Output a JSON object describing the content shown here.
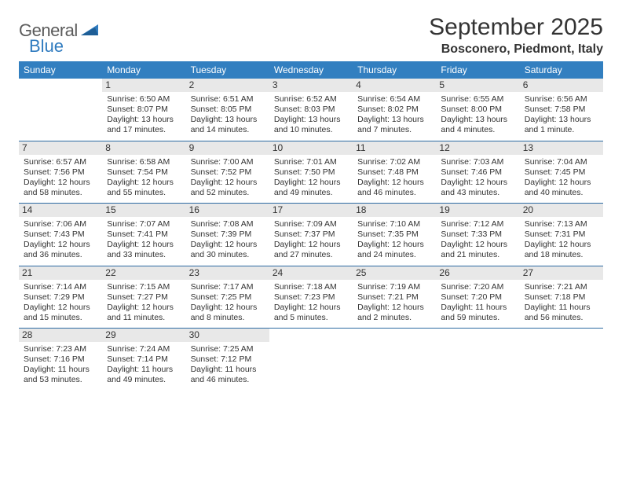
{
  "brand": {
    "general": "General",
    "blue": "Blue"
  },
  "title": "September 2025",
  "location": "Bosconero, Piedmont, Italy",
  "colors": {
    "header_bg": "#327fc0",
    "header_text": "#ffffff",
    "daynum_bg": "#e8e8e8",
    "rule": "#2d6aa2",
    "body_text": "#333333",
    "brand_gray": "#5b5b5b",
    "brand_blue": "#2f7bbf"
  },
  "dayNames": [
    "Sunday",
    "Monday",
    "Tuesday",
    "Wednesday",
    "Thursday",
    "Friday",
    "Saturday"
  ],
  "weeks": [
    [
      {
        "n": "",
        "sr": "",
        "ss": "",
        "dl": ""
      },
      {
        "n": "1",
        "sr": "Sunrise: 6:50 AM",
        "ss": "Sunset: 8:07 PM",
        "dl": "Daylight: 13 hours and 17 minutes."
      },
      {
        "n": "2",
        "sr": "Sunrise: 6:51 AM",
        "ss": "Sunset: 8:05 PM",
        "dl": "Daylight: 13 hours and 14 minutes."
      },
      {
        "n": "3",
        "sr": "Sunrise: 6:52 AM",
        "ss": "Sunset: 8:03 PM",
        "dl": "Daylight: 13 hours and 10 minutes."
      },
      {
        "n": "4",
        "sr": "Sunrise: 6:54 AM",
        "ss": "Sunset: 8:02 PM",
        "dl": "Daylight: 13 hours and 7 minutes."
      },
      {
        "n": "5",
        "sr": "Sunrise: 6:55 AM",
        "ss": "Sunset: 8:00 PM",
        "dl": "Daylight: 13 hours and 4 minutes."
      },
      {
        "n": "6",
        "sr": "Sunrise: 6:56 AM",
        "ss": "Sunset: 7:58 PM",
        "dl": "Daylight: 13 hours and 1 minute."
      }
    ],
    [
      {
        "n": "7",
        "sr": "Sunrise: 6:57 AM",
        "ss": "Sunset: 7:56 PM",
        "dl": "Daylight: 12 hours and 58 minutes."
      },
      {
        "n": "8",
        "sr": "Sunrise: 6:58 AM",
        "ss": "Sunset: 7:54 PM",
        "dl": "Daylight: 12 hours and 55 minutes."
      },
      {
        "n": "9",
        "sr": "Sunrise: 7:00 AM",
        "ss": "Sunset: 7:52 PM",
        "dl": "Daylight: 12 hours and 52 minutes."
      },
      {
        "n": "10",
        "sr": "Sunrise: 7:01 AM",
        "ss": "Sunset: 7:50 PM",
        "dl": "Daylight: 12 hours and 49 minutes."
      },
      {
        "n": "11",
        "sr": "Sunrise: 7:02 AM",
        "ss": "Sunset: 7:48 PM",
        "dl": "Daylight: 12 hours and 46 minutes."
      },
      {
        "n": "12",
        "sr": "Sunrise: 7:03 AM",
        "ss": "Sunset: 7:46 PM",
        "dl": "Daylight: 12 hours and 43 minutes."
      },
      {
        "n": "13",
        "sr": "Sunrise: 7:04 AM",
        "ss": "Sunset: 7:45 PM",
        "dl": "Daylight: 12 hours and 40 minutes."
      }
    ],
    [
      {
        "n": "14",
        "sr": "Sunrise: 7:06 AM",
        "ss": "Sunset: 7:43 PM",
        "dl": "Daylight: 12 hours and 36 minutes."
      },
      {
        "n": "15",
        "sr": "Sunrise: 7:07 AM",
        "ss": "Sunset: 7:41 PM",
        "dl": "Daylight: 12 hours and 33 minutes."
      },
      {
        "n": "16",
        "sr": "Sunrise: 7:08 AM",
        "ss": "Sunset: 7:39 PM",
        "dl": "Daylight: 12 hours and 30 minutes."
      },
      {
        "n": "17",
        "sr": "Sunrise: 7:09 AM",
        "ss": "Sunset: 7:37 PM",
        "dl": "Daylight: 12 hours and 27 minutes."
      },
      {
        "n": "18",
        "sr": "Sunrise: 7:10 AM",
        "ss": "Sunset: 7:35 PM",
        "dl": "Daylight: 12 hours and 24 minutes."
      },
      {
        "n": "19",
        "sr": "Sunrise: 7:12 AM",
        "ss": "Sunset: 7:33 PM",
        "dl": "Daylight: 12 hours and 21 minutes."
      },
      {
        "n": "20",
        "sr": "Sunrise: 7:13 AM",
        "ss": "Sunset: 7:31 PM",
        "dl": "Daylight: 12 hours and 18 minutes."
      }
    ],
    [
      {
        "n": "21",
        "sr": "Sunrise: 7:14 AM",
        "ss": "Sunset: 7:29 PM",
        "dl": "Daylight: 12 hours and 15 minutes."
      },
      {
        "n": "22",
        "sr": "Sunrise: 7:15 AM",
        "ss": "Sunset: 7:27 PM",
        "dl": "Daylight: 12 hours and 11 minutes."
      },
      {
        "n": "23",
        "sr": "Sunrise: 7:17 AM",
        "ss": "Sunset: 7:25 PM",
        "dl": "Daylight: 12 hours and 8 minutes."
      },
      {
        "n": "24",
        "sr": "Sunrise: 7:18 AM",
        "ss": "Sunset: 7:23 PM",
        "dl": "Daylight: 12 hours and 5 minutes."
      },
      {
        "n": "25",
        "sr": "Sunrise: 7:19 AM",
        "ss": "Sunset: 7:21 PM",
        "dl": "Daylight: 12 hours and 2 minutes."
      },
      {
        "n": "26",
        "sr": "Sunrise: 7:20 AM",
        "ss": "Sunset: 7:20 PM",
        "dl": "Daylight: 11 hours and 59 minutes."
      },
      {
        "n": "27",
        "sr": "Sunrise: 7:21 AM",
        "ss": "Sunset: 7:18 PM",
        "dl": "Daylight: 11 hours and 56 minutes."
      }
    ],
    [
      {
        "n": "28",
        "sr": "Sunrise: 7:23 AM",
        "ss": "Sunset: 7:16 PM",
        "dl": "Daylight: 11 hours and 53 minutes."
      },
      {
        "n": "29",
        "sr": "Sunrise: 7:24 AM",
        "ss": "Sunset: 7:14 PM",
        "dl": "Daylight: 11 hours and 49 minutes."
      },
      {
        "n": "30",
        "sr": "Sunrise: 7:25 AM",
        "ss": "Sunset: 7:12 PM",
        "dl": "Daylight: 11 hours and 46 minutes."
      },
      {
        "n": "",
        "sr": "",
        "ss": "",
        "dl": ""
      },
      {
        "n": "",
        "sr": "",
        "ss": "",
        "dl": ""
      },
      {
        "n": "",
        "sr": "",
        "ss": "",
        "dl": ""
      },
      {
        "n": "",
        "sr": "",
        "ss": "",
        "dl": ""
      }
    ]
  ]
}
